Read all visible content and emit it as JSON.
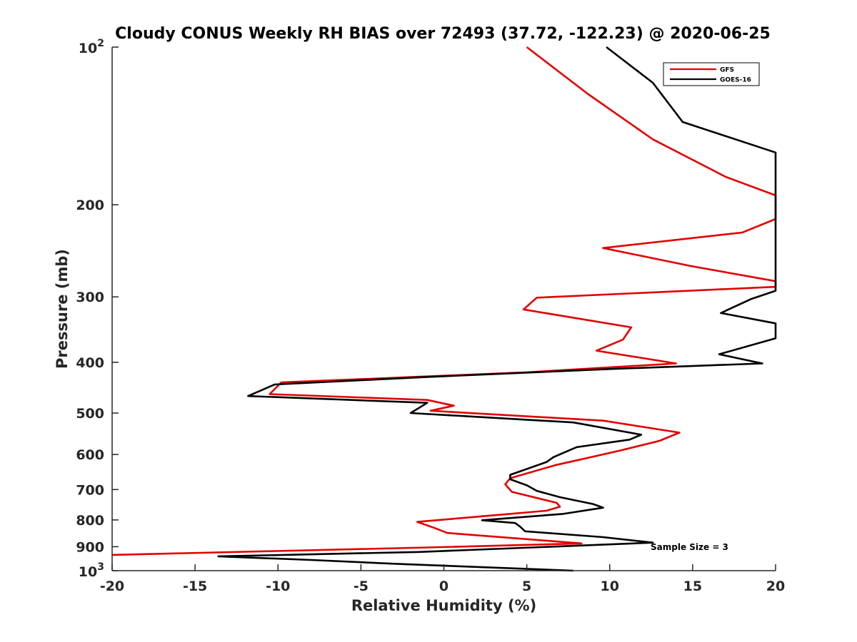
{
  "chart_data": {
    "type": "line",
    "title": "Cloudy CONUS Weekly RH BIAS over 72493 (37.72, -122.23) @ 2020-06-25",
    "xlabel": "Relative Humidity (%)",
    "ylabel": "Pressure (mb)",
    "xlim": [
      -20,
      20
    ],
    "ylim": [
      100,
      1000
    ],
    "yscale": "log",
    "y_reversed": true,
    "grid": false,
    "legend_position": "top-right",
    "x_ticks": [
      "-20",
      "-15",
      "-10",
      "-5",
      "0",
      "5",
      "10",
      "15",
      "20"
    ],
    "y_tick_labels": [
      {
        "value": 100,
        "base": "10",
        "exp": "2"
      },
      {
        "value": 200,
        "text": "200"
      },
      {
        "value": 300,
        "text": "300"
      },
      {
        "value": 400,
        "text": "400"
      },
      {
        "value": 500,
        "text": "500"
      },
      {
        "value": 600,
        "text": "600"
      },
      {
        "value": 700,
        "text": "700"
      },
      {
        "value": 800,
        "text": "800"
      },
      {
        "value": 900,
        "text": "900"
      },
      {
        "value": 1000,
        "base": "10",
        "exp": "3"
      }
    ],
    "series": [
      {
        "name": "GFS",
        "color": "#e30000",
        "points": [
          [
            5.0,
            100
          ],
          [
            8.7,
            123
          ],
          [
            12.6,
            150
          ],
          [
            17.0,
            177
          ],
          [
            20.0,
            192
          ],
          [
            20.0,
            213
          ],
          [
            18.0,
            226
          ],
          [
            9.6,
            242
          ],
          [
            14.9,
            262
          ],
          [
            20.0,
            280
          ],
          [
            20.0,
            287
          ],
          [
            5.6,
            301
          ],
          [
            4.8,
            317
          ],
          [
            11.3,
            343
          ],
          [
            10.8,
            362
          ],
          [
            9.2,
            380
          ],
          [
            14.0,
            402
          ],
          [
            5.0,
            418
          ],
          [
            -9.8,
            437
          ],
          [
            -10.5,
            460
          ],
          [
            -1.0,
            472
          ],
          [
            0.6,
            484
          ],
          [
            -0.8,
            495
          ],
          [
            9.6,
            517
          ],
          [
            14.2,
            545
          ],
          [
            13.0,
            565
          ],
          [
            10.6,
            590
          ],
          [
            6.7,
            629
          ],
          [
            4.0,
            666
          ],
          [
            3.7,
            684
          ],
          [
            4.1,
            707
          ],
          [
            6.8,
            742
          ],
          [
            7.0,
            755
          ],
          [
            6.2,
            768
          ],
          [
            3.8,
            780
          ],
          [
            -1.6,
            807
          ],
          [
            -0.6,
            828
          ],
          [
            0.2,
            847
          ],
          [
            8.3,
            887
          ],
          [
            -1.0,
            903
          ],
          [
            -20.0,
            933
          ]
        ]
      },
      {
        "name": "GOES-16",
        "color": "#000000",
        "points": [
          [
            9.8,
            100
          ],
          [
            12.6,
            117
          ],
          [
            14.4,
            139
          ],
          [
            20.0,
            159
          ],
          [
            20.0,
            292
          ],
          [
            18.5,
            303
          ],
          [
            16.7,
            322
          ],
          [
            20.0,
            337
          ],
          [
            20.0,
            360
          ],
          [
            16.6,
            386
          ],
          [
            19.2,
            402
          ],
          [
            10.0,
            412
          ],
          [
            -1.2,
            427
          ],
          [
            -10.2,
            441
          ],
          [
            -11.8,
            464
          ],
          [
            -1.0,
            478
          ],
          [
            -2.0,
            500
          ],
          [
            7.8,
            521
          ],
          [
            11.9,
            550
          ],
          [
            11.2,
            562
          ],
          [
            8.0,
            581
          ],
          [
            6.6,
            607
          ],
          [
            6.2,
            620
          ],
          [
            4.0,
            656
          ],
          [
            4.0,
            669
          ],
          [
            5.0,
            687
          ],
          [
            5.6,
            704
          ],
          [
            7.0,
            724
          ],
          [
            9.0,
            746
          ],
          [
            9.6,
            758
          ],
          [
            7.2,
            779
          ],
          [
            2.3,
            801
          ],
          [
            4.3,
            811
          ],
          [
            4.6,
            824
          ],
          [
            4.9,
            841
          ],
          [
            9.6,
            863
          ],
          [
            12.6,
            884
          ],
          [
            -1.5,
            921
          ],
          [
            -13.6,
            939
          ],
          [
            -8.0,
            954
          ],
          [
            -3.0,
            970
          ],
          [
            7.8,
            1000
          ]
        ]
      }
    ],
    "annotations": [
      "Sample Size = 3"
    ]
  }
}
